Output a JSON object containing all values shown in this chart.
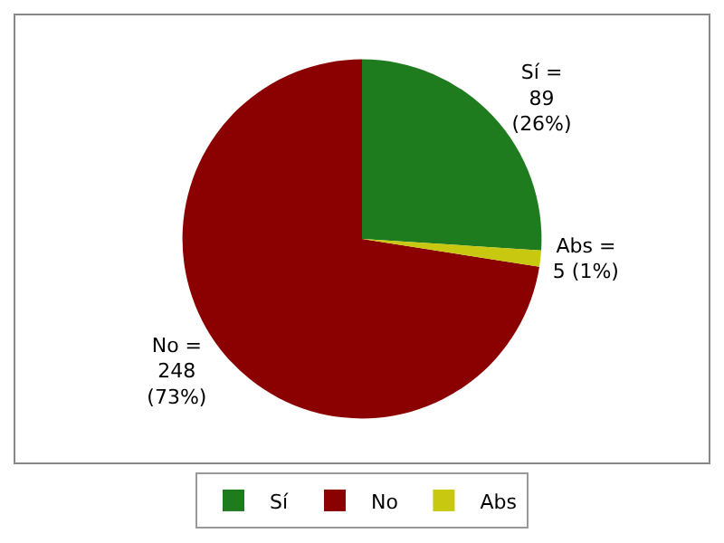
{
  "chart_data": {
    "type": "pie",
    "categories": [
      "Sí",
      "No",
      "Abs"
    ],
    "values": [
      89,
      248,
      5
    ],
    "colors": [
      "#1e7b1e",
      "#8b0000",
      "#c8c810"
    ],
    "value_labels": [
      "Sí =\n89\n(26%)",
      "No =\n248\n(73%)",
      "Abs =\n5 (1%)"
    ],
    "legend": "bottom"
  }
}
